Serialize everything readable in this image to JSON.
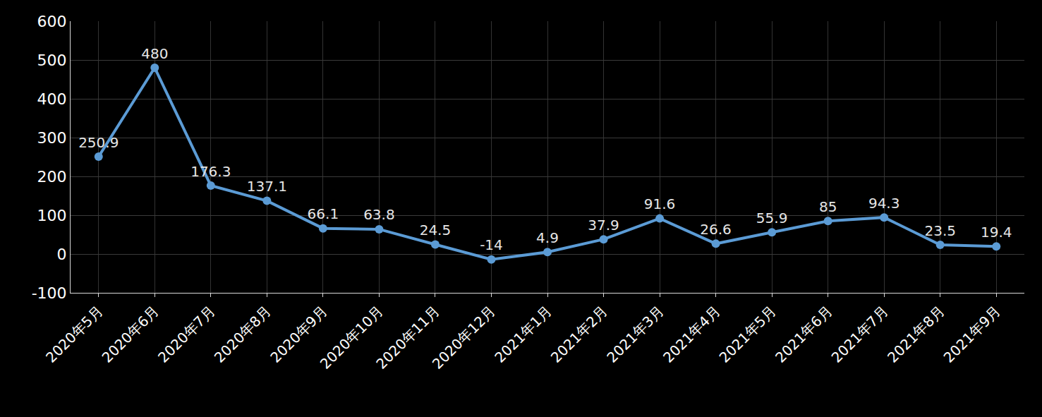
{
  "chart_data": {
    "type": "line",
    "categories": [
      "2020年5月",
      "2020年6月",
      "2020年7月",
      "2020年8月",
      "2020年9月",
      "2020年10月",
      "2020年11月",
      "2020年12月",
      "2021年1月",
      "2021年2月",
      "2021年3月",
      "2021年4月",
      "2021年5月",
      "2021年6月",
      "2021年7月",
      "2021年8月",
      "2021年9月"
    ],
    "values": [
      250.9,
      480,
      176.3,
      137.1,
      66.1,
      63.8,
      24.5,
      -14,
      4.9,
      37.9,
      91.6,
      26.6,
      55.9,
      85,
      94.3,
      23.5,
      19.4
    ],
    "color": "#5b9bd5",
    "ylim": [
      -100,
      600
    ],
    "yticks": [
      -100,
      0,
      100,
      200,
      300,
      400,
      500,
      600
    ],
    "grid": true,
    "data_labels": true,
    "marker": "circle"
  }
}
